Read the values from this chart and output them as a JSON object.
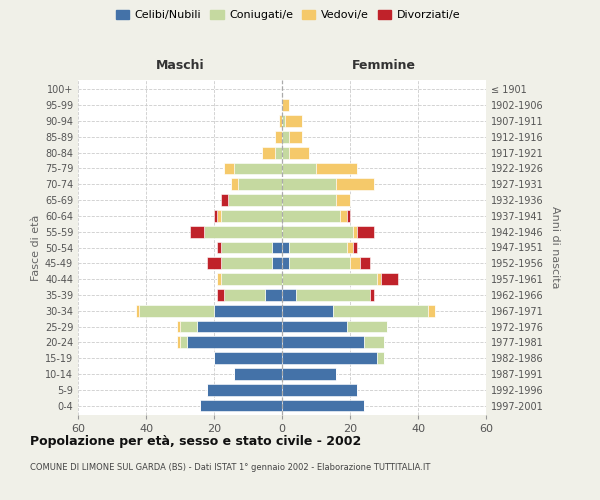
{
  "age_groups": [
    "0-4",
    "5-9",
    "10-14",
    "15-19",
    "20-24",
    "25-29",
    "30-34",
    "35-39",
    "40-44",
    "45-49",
    "50-54",
    "55-59",
    "60-64",
    "65-69",
    "70-74",
    "75-79",
    "80-84",
    "85-89",
    "90-94",
    "95-99",
    "100+"
  ],
  "birth_years": [
    "1997-2001",
    "1992-1996",
    "1987-1991",
    "1982-1986",
    "1977-1981",
    "1972-1976",
    "1967-1971",
    "1962-1966",
    "1957-1961",
    "1952-1956",
    "1947-1951",
    "1942-1946",
    "1937-1941",
    "1932-1936",
    "1927-1931",
    "1922-1926",
    "1917-1921",
    "1912-1916",
    "1907-1911",
    "1902-1906",
    "≤ 1901"
  ],
  "maschi": {
    "celibi": [
      24,
      22,
      14,
      20,
      28,
      25,
      20,
      5,
      0,
      3,
      3,
      0,
      0,
      0,
      0,
      0,
      0,
      0,
      0,
      0,
      0
    ],
    "coniugati": [
      0,
      0,
      0,
      0,
      2,
      5,
      22,
      12,
      18,
      15,
      15,
      23,
      18,
      16,
      13,
      14,
      2,
      0,
      0,
      0,
      0
    ],
    "vedovi": [
      0,
      0,
      0,
      0,
      1,
      1,
      1,
      0,
      1,
      0,
      0,
      0,
      1,
      0,
      2,
      3,
      4,
      2,
      1,
      0,
      0
    ],
    "divorziati": [
      0,
      0,
      0,
      0,
      0,
      0,
      0,
      2,
      0,
      4,
      1,
      4,
      1,
      2,
      0,
      0,
      0,
      0,
      0,
      0,
      0
    ]
  },
  "femmine": {
    "nubili": [
      24,
      22,
      16,
      28,
      24,
      19,
      15,
      4,
      0,
      2,
      2,
      0,
      0,
      0,
      0,
      0,
      0,
      0,
      0,
      0,
      0
    ],
    "coniugate": [
      0,
      0,
      0,
      2,
      6,
      12,
      28,
      22,
      28,
      18,
      17,
      21,
      17,
      16,
      16,
      10,
      2,
      2,
      1,
      0,
      0
    ],
    "vedove": [
      0,
      0,
      0,
      0,
      0,
      0,
      2,
      0,
      1,
      3,
      2,
      1,
      2,
      4,
      11,
      12,
      6,
      4,
      5,
      2,
      0
    ],
    "divorziate": [
      0,
      0,
      0,
      0,
      0,
      0,
      0,
      1,
      5,
      3,
      1,
      5,
      1,
      0,
      0,
      0,
      0,
      0,
      0,
      0,
      0
    ]
  },
  "colors": {
    "celibi": "#4472a8",
    "coniugati": "#c5d9a0",
    "vedovi": "#f5c96a",
    "divorziati": "#c0222a"
  },
  "xlim": 60,
  "title": "Popolazione per età, sesso e stato civile - 2002",
  "subtitle": "COMUNE DI LIMONE SUL GARDA (BS) - Dati ISTAT 1° gennaio 2002 - Elaborazione TUTTITALIA.IT",
  "ylabel_left": "Fasce di età",
  "ylabel_right": "Anni di nascita",
  "legend_labels": [
    "Celibi/Nubili",
    "Coniugati/e",
    "Vedovi/e",
    "Divorziati/e"
  ],
  "maschi_label": "Maschi",
  "femmine_label": "Femmine",
  "bg_color": "#f0f0e8",
  "plot_bg": "#ffffff"
}
